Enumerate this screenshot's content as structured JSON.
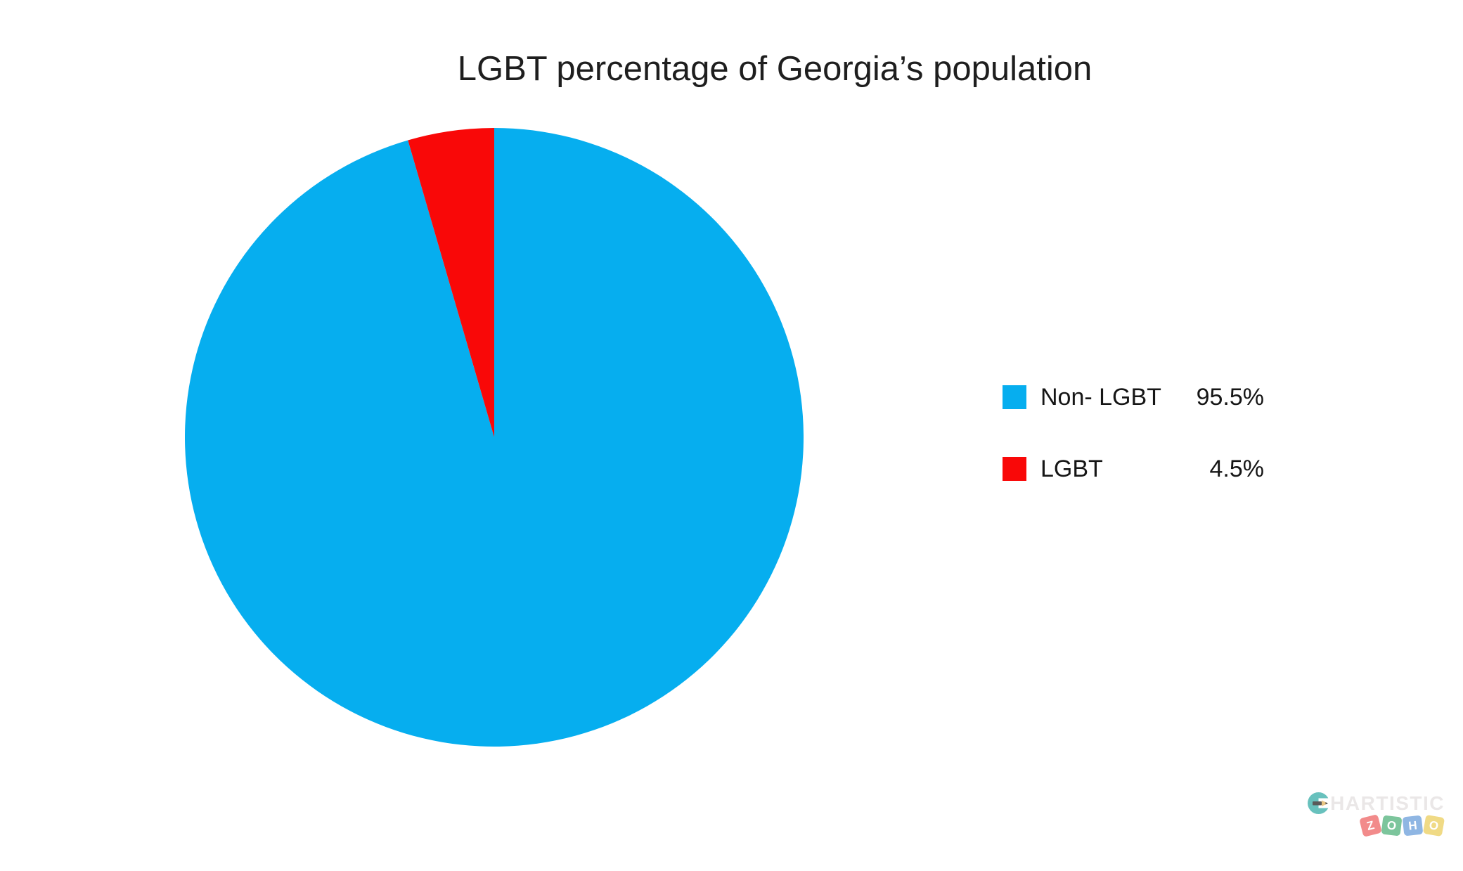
{
  "chart_data": {
    "type": "pie",
    "title": "LGBT percentage of Georgia’s population",
    "legend_position": "right",
    "start_angle_deg": 0,
    "direction": "clockwise",
    "slices": [
      {
        "label": "Non- LGBT",
        "value": 95.5,
        "display": "95.5%",
        "color": "#06aeef"
      },
      {
        "label": "LGBT",
        "value": 4.5,
        "display": "4.5%",
        "color": "#f90808"
      }
    ]
  },
  "watermark": {
    "brand": "CHARTISTIC",
    "brand_rest": "HARTISTIC",
    "icon_color": "#68c1bd",
    "brand_text_color": "#eae7e7",
    "logo_letters": [
      "Z",
      "O",
      "H",
      "O"
    ],
    "logo_colors": [
      "#f28b8b",
      "#7cc59c",
      "#8fb6e3",
      "#f0da85"
    ]
  }
}
